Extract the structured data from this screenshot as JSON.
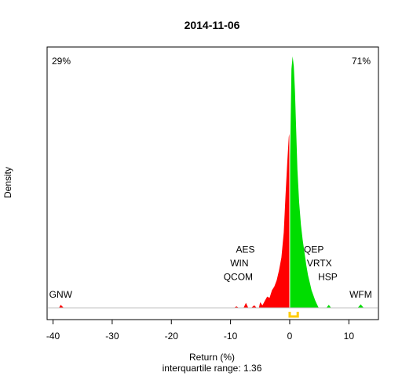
{
  "chart_data": {
    "type": "area",
    "title": "2014-11-06",
    "xlabel": "Return (%)",
    "subtitle": "interquartile range: 1.36",
    "ylabel": "Density",
    "xlim": [
      -41,
      15
    ],
    "x_ticks": [
      -40,
      -30,
      -20,
      -10,
      0,
      10
    ],
    "left_pct": "29%",
    "right_pct": "71%",
    "colors": {
      "negative": "#ff0000",
      "positive": "#00dd00",
      "iqr": "#ffcc00",
      "left_pct": "#ff0000",
      "right_pct": "#008800"
    },
    "density_negative": [
      [
        -39.0,
        0.0
      ],
      [
        -38.7,
        0.012
      ],
      [
        -38.2,
        0.0
      ],
      [
        -9.4,
        0.0
      ],
      [
        -9.0,
        0.006
      ],
      [
        -8.6,
        0.0
      ],
      [
        -7.8,
        0.0
      ],
      [
        -7.4,
        0.02
      ],
      [
        -7.0,
        0.0
      ],
      [
        -6.5,
        0.0
      ],
      [
        -6.0,
        0.01
      ],
      [
        -5.6,
        0.0
      ],
      [
        -5.2,
        0.0
      ],
      [
        -5.0,
        0.022
      ],
      [
        -4.6,
        0.01
      ],
      [
        -4.2,
        0.028
      ],
      [
        -3.8,
        0.045
      ],
      [
        -3.4,
        0.04
      ],
      [
        -3.0,
        0.07
      ],
      [
        -2.6,
        0.085
      ],
      [
        -2.2,
        0.11
      ],
      [
        -1.8,
        0.15
      ],
      [
        -1.4,
        0.2
      ],
      [
        -1.0,
        0.3
      ],
      [
        -0.7,
        0.45
      ],
      [
        -0.4,
        0.58
      ],
      [
        -0.15,
        0.68
      ],
      [
        0.0,
        0.7
      ]
    ],
    "density_positive": [
      [
        0.0,
        0.5
      ],
      [
        0.15,
        0.72
      ],
      [
        0.3,
        0.95
      ],
      [
        0.5,
        1.0
      ],
      [
        0.7,
        0.96
      ],
      [
        0.9,
        0.86
      ],
      [
        1.1,
        0.7
      ],
      [
        1.3,
        0.55
      ],
      [
        1.6,
        0.42
      ],
      [
        1.9,
        0.33
      ],
      [
        2.2,
        0.27
      ],
      [
        2.5,
        0.22
      ],
      [
        2.8,
        0.17
      ],
      [
        3.1,
        0.13
      ],
      [
        3.4,
        0.1
      ],
      [
        3.7,
        0.07
      ],
      [
        4.0,
        0.05
      ],
      [
        4.3,
        0.03
      ],
      [
        4.6,
        0.015
      ],
      [
        4.9,
        0.0
      ],
      [
        6.2,
        0.0
      ],
      [
        6.6,
        0.012
      ],
      [
        7.0,
        0.0
      ],
      [
        11.5,
        0.0
      ],
      [
        12.0,
        0.014
      ],
      [
        12.5,
        0.0
      ]
    ],
    "annotations": [
      {
        "label": "GNW",
        "x": -38.7,
        "y": 0.04,
        "anchor": "middle"
      },
      {
        "label": "AES",
        "x": -7.5,
        "y": 0.22,
        "anchor": "middle"
      },
      {
        "label": "WIN",
        "x": -8.5,
        "y": 0.165,
        "anchor": "middle"
      },
      {
        "label": "QCOM",
        "x": -8.7,
        "y": 0.11,
        "anchor": "middle"
      },
      {
        "label": "QEP",
        "x": 2.4,
        "y": 0.22,
        "anchor": "start"
      },
      {
        "label": "VRTX",
        "x": 2.9,
        "y": 0.165,
        "anchor": "start"
      },
      {
        "label": "HSP",
        "x": 4.8,
        "y": 0.11,
        "anchor": "start"
      },
      {
        "label": "WFM",
        "x": 12.0,
        "y": 0.04,
        "anchor": "middle"
      }
    ],
    "iqr": [
      0.0,
      1.36
    ],
    "grid": false
  }
}
